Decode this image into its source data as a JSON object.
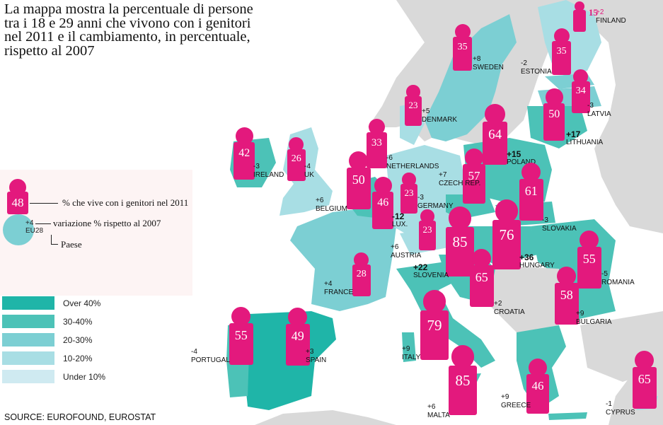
{
  "title": "La mappa mostra la percentuale di persone tra i 18 e 29 anni che vivono con i genitori nel 2011 e il cambiamento, in percentuale, rispetto al 2007",
  "legend": {
    "example_value": "48",
    "example_change": "+4",
    "example_country": "EU28",
    "line1": "% che vive con i genitori nel 2011",
    "line2": "variazione % rispetto al 2007",
    "line3": "Paese"
  },
  "scale": [
    {
      "label": "Over 40%",
      "color": "#1fb5a8"
    },
    {
      "label": "30-40%",
      "color": "#4cc2b7"
    },
    {
      "label": "20-30%",
      "color": "#7ccfd3"
    },
    {
      "label": "10-20%",
      "color": "#a8dee4"
    },
    {
      "label": "Under 10%",
      "color": "#cfeaf1"
    }
  ],
  "source": "SOURCE: EUROFOUND, EUROSTAT",
  "countries": [
    {
      "name": "FINLAND",
      "value": "15",
      "change": "+2"
    },
    {
      "name": "SWEDEN",
      "value": "35",
      "change": "+8"
    },
    {
      "name": "ESTONIA",
      "value": "35",
      "change": "-2"
    },
    {
      "name": "LATVIA",
      "value": "34",
      "change": "-3"
    },
    {
      "name": "DENMARK",
      "value": "23",
      "change": "+5"
    },
    {
      "name": "LITHUANIA",
      "value": "50",
      "change": "+17"
    },
    {
      "name": "IRELAND",
      "value": "42",
      "change": "-3"
    },
    {
      "name": "UK",
      "value": "26",
      "change": "-4"
    },
    {
      "name": "NETHERLANDS",
      "value": "33",
      "change": "-6"
    },
    {
      "name": "POLAND",
      "value": "64",
      "change": "+15"
    },
    {
      "name": "BELGIUM",
      "value": "50",
      "change": "+6"
    },
    {
      "name": "LUX.",
      "value": "46",
      "change": "-12"
    },
    {
      "name": "GERMANY",
      "value": "23",
      "change": "-3"
    },
    {
      "name": "CZECH REP.",
      "value": "57",
      "change": "+7"
    },
    {
      "name": "SLOVAKIA",
      "value": "61",
      "change": "-3"
    },
    {
      "name": "AUSTRIA",
      "value": "23",
      "change": "+6"
    },
    {
      "name": "SLOVENIA",
      "value": "85",
      "change": "+22"
    },
    {
      "name": "HUNGARY",
      "value": "76",
      "change": "+36"
    },
    {
      "name": "ROMANIA",
      "value": "55",
      "change": "-5"
    },
    {
      "name": "FRANCE",
      "value": "28",
      "change": "+4"
    },
    {
      "name": "CROATIA",
      "value": "65",
      "change": "+2"
    },
    {
      "name": "BULGARIA",
      "value": "58",
      "change": "+9"
    },
    {
      "name": "PORTUGAL",
      "value": "55",
      "change": "-4"
    },
    {
      "name": "SPAIN",
      "value": "49",
      "change": "+3"
    },
    {
      "name": "ITALY",
      "value": "79",
      "change": "+9"
    },
    {
      "name": "MALTA",
      "value": "85",
      "change": "+6"
    },
    {
      "name": "GREECE",
      "value": "46",
      "change": "+9"
    },
    {
      "name": "CYPRUS",
      "value": "65",
      "change": "-1"
    }
  ]
}
